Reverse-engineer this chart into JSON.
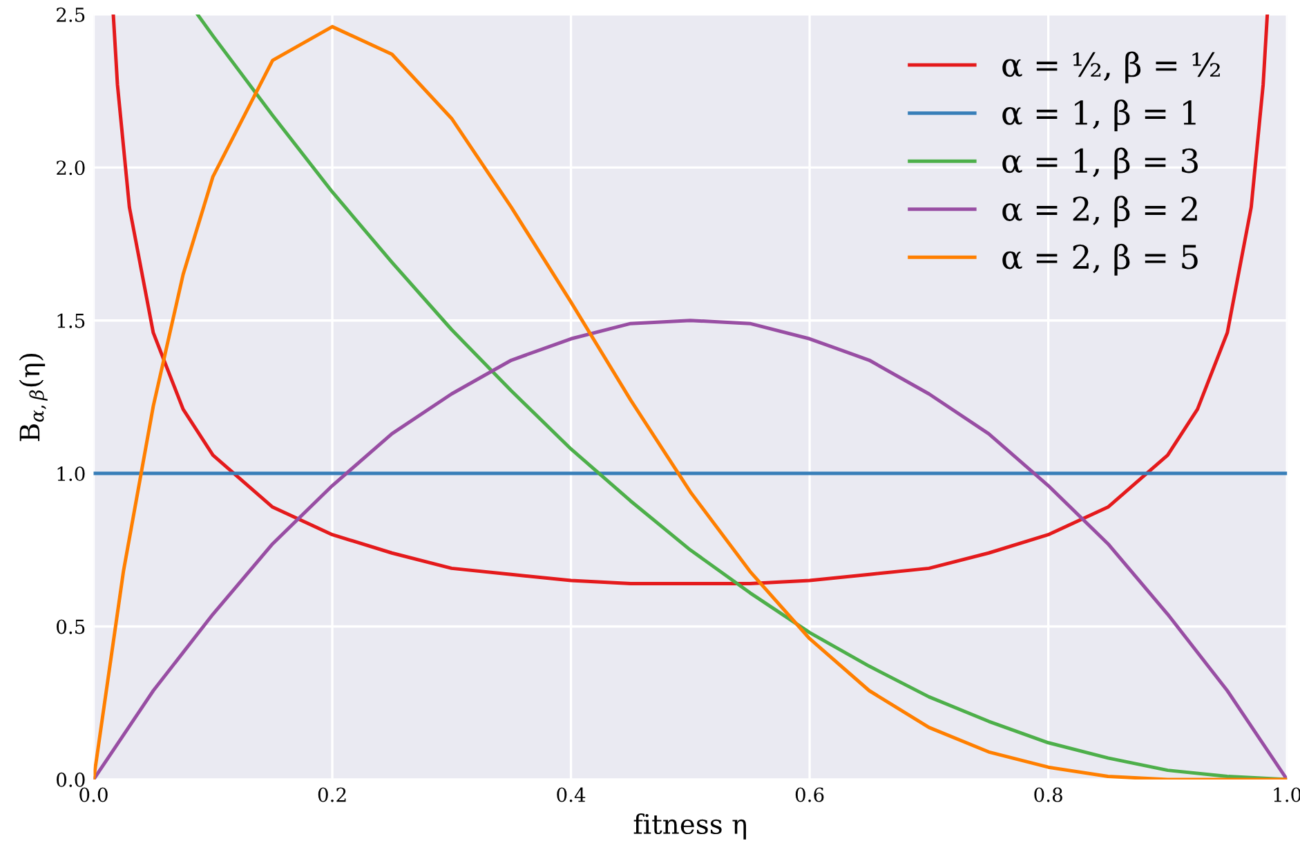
{
  "chart_data": {
    "type": "line",
    "xlabel": "fitness η",
    "ylabel": "B$_{α,β}$(η)",
    "xlim": [
      0.0,
      1.0
    ],
    "ylim": [
      0.0,
      2.5
    ],
    "xticks": [
      {
        "value": 0,
        "label": "0.0"
      },
      0.2,
      0.4,
      0.6,
      0.8,
      {
        "value": 1,
        "label": "1.0"
      }
    ],
    "yticks": [
      {
        "value": 0,
        "label": "0.0"
      },
      0.5,
      {
        "value": 1,
        "label": "1.0"
      },
      1.5,
      {
        "value": 2,
        "label": "2.0"
      },
      2.5
    ],
    "grid": true,
    "legend": "top right",
    "marker": "none",
    "line_style": "solid",
    "series": [
      {
        "name": "α = ½, β = ½",
        "color": "#e41a1c",
        "x": [
          0.0165,
          0.02,
          0.03,
          0.05,
          0.075,
          0.1,
          0.15,
          0.2,
          0.25,
          0.3,
          0.35,
          0.4,
          0.45,
          0.5,
          0.55,
          0.6,
          0.65,
          0.7,
          0.75,
          0.8,
          0.85,
          0.9,
          0.925,
          0.95,
          0.97,
          0.98,
          0.9835
        ],
        "values": [
          2.5,
          2.27,
          1.87,
          1.46,
          1.21,
          1.06,
          0.89,
          0.8,
          0.74,
          0.69,
          0.67,
          0.65,
          0.64,
          0.64,
          0.64,
          0.65,
          0.67,
          0.69,
          0.74,
          0.8,
          0.89,
          1.06,
          1.21,
          1.46,
          1.87,
          2.27,
          2.5
        ]
      },
      {
        "name": "α = 1, β = 1",
        "color": "#377eb8",
        "x": [
          0.0,
          1.0
        ],
        "values": [
          1.0,
          1.0
        ]
      },
      {
        "name": "α = 1, β = 3",
        "color": "#4daf4a",
        "x": [
          0.0871,
          0.1,
          0.15,
          0.2,
          0.25,
          0.3,
          0.35,
          0.4,
          0.45,
          0.5,
          0.55,
          0.6,
          0.65,
          0.7,
          0.75,
          0.8,
          0.85,
          0.9,
          0.95,
          1.0
        ],
        "values": [
          2.5,
          2.43,
          2.17,
          1.92,
          1.69,
          1.47,
          1.27,
          1.08,
          0.91,
          0.75,
          0.61,
          0.48,
          0.37,
          0.27,
          0.19,
          0.12,
          0.07,
          0.03,
          0.01,
          0.0
        ]
      },
      {
        "name": "α = 2, β = 2",
        "color": "#984ea3",
        "x": [
          0.0,
          0.05,
          0.1,
          0.15,
          0.2,
          0.25,
          0.3,
          0.35,
          0.4,
          0.45,
          0.5,
          0.55,
          0.6,
          0.65,
          0.7,
          0.75,
          0.8,
          0.85,
          0.9,
          0.95,
          1.0
        ],
        "values": [
          0.0,
          0.29,
          0.54,
          0.77,
          0.96,
          1.13,
          1.26,
          1.37,
          1.44,
          1.49,
          1.5,
          1.49,
          1.44,
          1.37,
          1.26,
          1.13,
          0.96,
          0.77,
          0.54,
          0.29,
          0.0
        ]
      },
      {
        "name": "α = 2, β = 5",
        "color": "#ff7f00",
        "x": [
          0.0,
          0.025,
          0.05,
          0.075,
          0.1,
          0.15,
          0.2,
          0.25,
          0.3,
          0.35,
          0.4,
          0.45,
          0.5,
          0.55,
          0.6,
          0.65,
          0.7,
          0.75,
          0.8,
          0.85,
          0.9,
          1.0
        ],
        "values": [
          0.0,
          0.68,
          1.22,
          1.65,
          1.97,
          2.35,
          2.46,
          2.37,
          2.16,
          1.87,
          1.56,
          1.24,
          0.94,
          0.68,
          0.46,
          0.29,
          0.17,
          0.09,
          0.04,
          0.01,
          0.0,
          0.0
        ]
      }
    ]
  }
}
